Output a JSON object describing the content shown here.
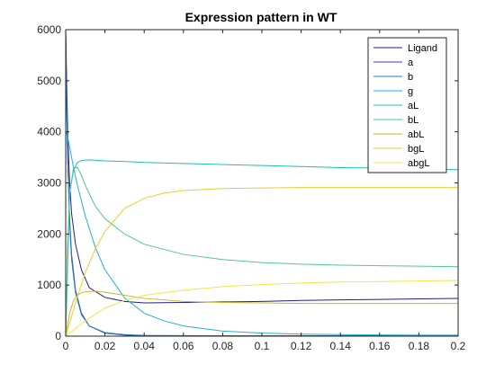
{
  "chart_data": {
    "type": "line",
    "title": "Expression pattern in WT",
    "xlabel": "",
    "ylabel": "",
    "xlim": [
      0,
      0.2
    ],
    "ylim": [
      0,
      6000
    ],
    "x_ticks": [
      0,
      0.02,
      0.04,
      0.06,
      0.08,
      0.1,
      0.12,
      0.14,
      0.16,
      0.18,
      0.2
    ],
    "x_tick_labels": [
      "0",
      "0.02",
      "0.04",
      "0.06",
      "0.08",
      "0.1",
      "0.12",
      "0.14",
      "0.16",
      "0.18",
      "0.2"
    ],
    "y_ticks": [
      0,
      1000,
      2000,
      3000,
      4000,
      5000,
      6000
    ],
    "y_tick_labels": [
      "0",
      "1000",
      "2000",
      "3000",
      "4000",
      "5000",
      "6000"
    ],
    "grid": false,
    "legend_position": "top-right",
    "series": [
      {
        "name": "Ligand",
        "color": "#1f1f8f",
        "x": [
          0,
          0.0005,
          0.001,
          0.002,
          0.003,
          0.005,
          0.008,
          0.012,
          0.02,
          0.03,
          0.04,
          0.06,
          0.08,
          0.1,
          0.12,
          0.14,
          0.16,
          0.18,
          0.2
        ],
        "y": [
          6000,
          5000,
          4000,
          3000,
          2400,
          1800,
          1300,
          950,
          760,
          680,
          650,
          660,
          670,
          680,
          700,
          710,
          720,
          730,
          740
        ]
      },
      {
        "name": "a",
        "color": "#3b3bd6",
        "x": [
          0,
          0.0005,
          0.001,
          0.002,
          0.003,
          0.005,
          0.008,
          0.012,
          0.02,
          0.03,
          0.04,
          0.06,
          0.08,
          0.1,
          0.12,
          0.14,
          0.16,
          0.18,
          0.2
        ],
        "y": [
          6000,
          4500,
          3500,
          2300,
          1600,
          900,
          450,
          200,
          60,
          20,
          10,
          5,
          5,
          5,
          5,
          5,
          5,
          5,
          5
        ]
      },
      {
        "name": "b",
        "color": "#2a7fb8",
        "x": [
          0,
          0.0005,
          0.001,
          0.002,
          0.003,
          0.005,
          0.008,
          0.012,
          0.02,
          0.03,
          0.04,
          0.06,
          0.08,
          0.1,
          0.12,
          0.14,
          0.16,
          0.18,
          0.2
        ],
        "y": [
          6000,
          4500,
          3500,
          2200,
          1500,
          850,
          420,
          200,
          70,
          30,
          15,
          10,
          8,
          8,
          8,
          8,
          8,
          8,
          8
        ]
      },
      {
        "name": "g",
        "color": "#22b0d8",
        "x": [
          0,
          0.001,
          0.002,
          0.004,
          0.006,
          0.01,
          0.015,
          0.02,
          0.03,
          0.04,
          0.05,
          0.06,
          0.08,
          0.1,
          0.12,
          0.14,
          0.16,
          0.18,
          0.2
        ],
        "y": [
          4000,
          3900,
          3700,
          3300,
          2950,
          2350,
          1750,
          1300,
          750,
          450,
          300,
          200,
          100,
          60,
          40,
          30,
          25,
          20,
          20
        ]
      },
      {
        "name": "aL",
        "color": "#1fbfae",
        "x": [
          0,
          0.002,
          0.004,
          0.006,
          0.008,
          0.012,
          0.02,
          0.03,
          0.04,
          0.06,
          0.08,
          0.1,
          0.12,
          0.14,
          0.16,
          0.18,
          0.2
        ],
        "y": [
          0,
          2800,
          3250,
          3400,
          3440,
          3450,
          3430,
          3420,
          3400,
          3380,
          3360,
          3340,
          3320,
          3300,
          3290,
          3270,
          3260
        ]
      },
      {
        "name": "bL",
        "color": "#4fc98a",
        "x": [
          0,
          0.001,
          0.002,
          0.004,
          0.006,
          0.008,
          0.01,
          0.015,
          0.02,
          0.03,
          0.04,
          0.06,
          0.08,
          0.1,
          0.12,
          0.14,
          0.16,
          0.18,
          0.2
        ],
        "y": [
          0,
          1800,
          2800,
          3300,
          3300,
          3150,
          2950,
          2550,
          2300,
          2000,
          1800,
          1600,
          1500,
          1440,
          1410,
          1390,
          1380,
          1370,
          1360
        ]
      },
      {
        "name": "abL",
        "color": "#c9b62a",
        "x": [
          0,
          0.002,
          0.004,
          0.006,
          0.008,
          0.01,
          0.015,
          0.02,
          0.03,
          0.04,
          0.06,
          0.08,
          0.1,
          0.12,
          0.14,
          0.16,
          0.18,
          0.2
        ],
        "y": [
          0,
          450,
          700,
          800,
          850,
          870,
          880,
          860,
          800,
          740,
          680,
          660,
          650,
          640,
          640,
          640,
          640,
          640
        ]
      },
      {
        "name": "bgL",
        "color": "#e6cf33",
        "x": [
          0,
          0.005,
          0.01,
          0.015,
          0.02,
          0.03,
          0.04,
          0.05,
          0.06,
          0.08,
          0.1,
          0.12,
          0.14,
          0.16,
          0.18,
          0.2
        ],
        "y": [
          0,
          650,
          1250,
          1700,
          2050,
          2500,
          2700,
          2800,
          2850,
          2890,
          2900,
          2910,
          2910,
          2910,
          2910,
          2910
        ]
      },
      {
        "name": "abgL",
        "color": "#f2e44a",
        "x": [
          0,
          0.005,
          0.01,
          0.02,
          0.03,
          0.04,
          0.06,
          0.08,
          0.1,
          0.12,
          0.14,
          0.16,
          0.18,
          0.2
        ],
        "y": [
          0,
          150,
          300,
          550,
          700,
          800,
          900,
          970,
          1010,
          1040,
          1060,
          1070,
          1080,
          1090
        ]
      }
    ]
  }
}
